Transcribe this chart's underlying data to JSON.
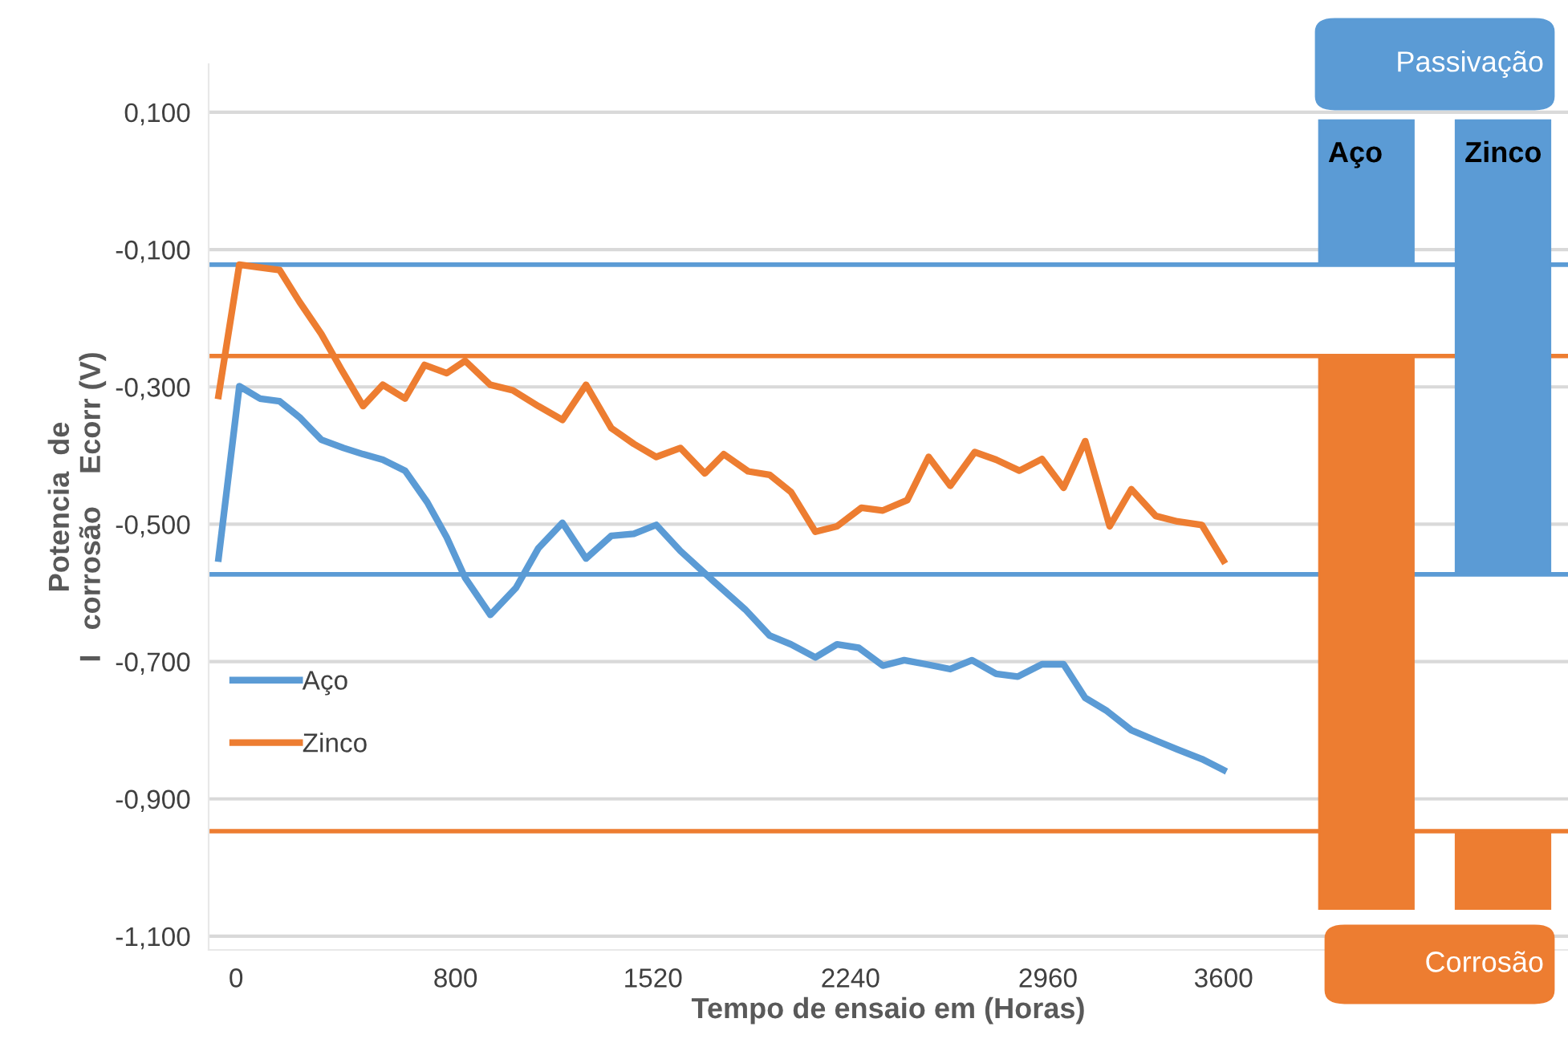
{
  "chart_data": {
    "type": "line",
    "xlabel": "Tempo de ensaio em (Horas)",
    "ylabel": "Potencia  de\nI   corrosão    Ecorr (V)",
    "xlim": [
      -100,
      4856
    ],
    "ylim": [
      -1.12,
      0.17
    ],
    "xticks": [
      0,
      800,
      1520,
      2240,
      2960,
      3600
    ],
    "yticks": [
      {
        "value": 0.1,
        "label": "0,100"
      },
      {
        "value": -0.1,
        "label": "-0,100"
      },
      {
        "value": -0.3,
        "label": "-0,300"
      },
      {
        "value": -0.5,
        "label": "-0,500"
      },
      {
        "value": -0.7,
        "label": "-0,700"
      },
      {
        "value": -0.9,
        "label": "-0,900"
      },
      {
        "value": -1.1,
        "label": "-1,100"
      }
    ],
    "grid": "y",
    "legend": "bottom left",
    "marker": "none",
    "line_style": "solid",
    "series": [
      {
        "name": "Aço",
        "color": "#5b9bd5",
        "x": [
          -64,
          12,
          87,
          159,
          231,
          311,
          392,
          463,
          535,
          616,
          697,
          768,
          835,
          927,
          1020,
          1102,
          1190,
          1276,
          1368,
          1450,
          1532,
          1620,
          1738,
          1856,
          1945,
          2023,
          2112,
          2191,
          2270,
          2358,
          2436,
          2516,
          2604,
          2683,
          2771,
          2850,
          2938,
          3017,
          3096,
          3175,
          3264,
          3353,
          3432,
          3521,
          3600
        ],
        "values": [
          -0.55,
          -0.299,
          -0.317,
          -0.321,
          -0.344,
          -0.377,
          -0.389,
          -0.398,
          -0.406,
          -0.422,
          -0.468,
          -0.519,
          -0.578,
          -0.632,
          -0.593,
          -0.535,
          -0.498,
          -0.55,
          -0.517,
          -0.514,
          -0.501,
          -0.539,
          -0.582,
          -0.624,
          -0.662,
          -0.675,
          -0.694,
          -0.675,
          -0.68,
          -0.706,
          -0.698,
          -0.704,
          -0.711,
          -0.698,
          -0.718,
          -0.722,
          -0.704,
          -0.704,
          -0.753,
          -0.772,
          -0.8,
          -0.815,
          -0.828,
          -0.842,
          -0.858
        ]
      },
      {
        "name": "Zinco",
        "color": "#ed7d31",
        "x": [
          -64,
          12,
          87,
          159,
          231,
          311,
          383,
          463,
          535,
          616,
          687,
          768,
          835,
          927,
          1009,
          1102,
          1190,
          1276,
          1368,
          1450,
          1532,
          1620,
          1709,
          1778,
          1867,
          1945,
          2023,
          2112,
          2191,
          2280,
          2358,
          2447,
          2525,
          2604,
          2693,
          2771,
          2856,
          2938,
          3017,
          3096,
          3185,
          3264,
          3353,
          3432,
          3521,
          3600
        ],
        "values": [
          -0.313,
          -0.122,
          -0.126,
          -0.13,
          -0.176,
          -0.223,
          -0.274,
          -0.328,
          -0.297,
          -0.317,
          -0.268,
          -0.28,
          -0.262,
          -0.297,
          -0.305,
          -0.328,
          -0.348,
          -0.297,
          -0.36,
          -0.383,
          -0.402,
          -0.389,
          -0.426,
          -0.398,
          -0.423,
          -0.428,
          -0.453,
          -0.511,
          -0.503,
          -0.476,
          -0.48,
          -0.465,
          -0.402,
          -0.444,
          -0.395,
          -0.406,
          -0.422,
          -0.405,
          -0.447,
          -0.379,
          -0.503,
          -0.449,
          -0.488,
          -0.496,
          -0.501,
          -0.553
        ]
      },
      {
        "name": "Passivação",
        "type": "bar",
        "color": "#5b9bd5",
        "x": [
          4121,
          4619
        ],
        "base": [
          -0.122,
          -0.573
        ],
        "values": [
          0.21,
          0.661
        ]
      },
      {
        "name": "Corrosão",
        "type": "bar",
        "color": "#ed7d31",
        "x": [
          4121,
          4619
        ],
        "base": [
          -1.06,
          -1.06
        ],
        "values": [
          0.805,
          0.113
        ]
      }
    ],
    "annotations": [
      {
        "text": "Aço",
        "x": 4121,
        "y": 0.088
      },
      {
        "text": "Zinco",
        "x": 4619,
        "y": 0.088
      }
    ],
    "ref_lines": [
      {
        "axis": "y",
        "value": -0.122,
        "color": "#5b9bd5"
      },
      {
        "axis": "y",
        "value": -0.255,
        "color": "#ed7d31"
      },
      {
        "axis": "y",
        "value": -0.573,
        "color": "#5b9bd5"
      },
      {
        "axis": "y",
        "value": -0.947,
        "color": "#ed7d31"
      }
    ]
  }
}
